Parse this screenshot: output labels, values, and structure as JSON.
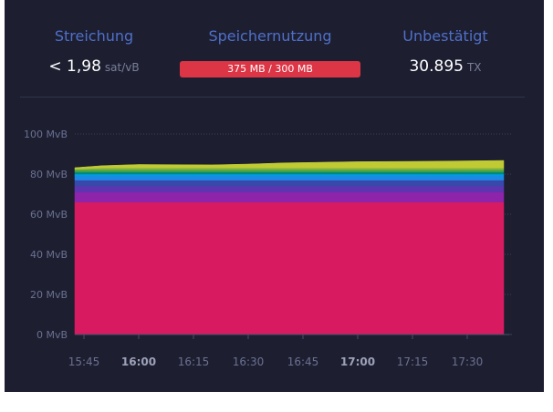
{
  "stats": {
    "fee": {
      "label": "Streichung",
      "value": "< 1,98",
      "unit": "sat/vB"
    },
    "memory": {
      "label": "Speichernutzung",
      "value": "375 MB / 300 MB",
      "usage_fraction": 1.0,
      "color": "#dc3545"
    },
    "unconfirmed": {
      "label": "Unbestätigt",
      "value": "30.895",
      "unit": "TX"
    }
  },
  "chart_data": {
    "type": "area",
    "title": "",
    "xlabel": "",
    "ylabel": "",
    "ylim": [
      0,
      100
    ],
    "y_ticks": [
      "0 MvB",
      "20 MvB",
      "40 MvB",
      "60 MvB",
      "80 MvB",
      "100 MvB"
    ],
    "x_ticks": [
      "15:45",
      "16:00",
      "16:15",
      "16:30",
      "16:45",
      "17:00",
      "17:15",
      "17:30"
    ],
    "x_ticks_bold": [
      "16:00",
      "17:00"
    ],
    "xlim_minutes": [
      15.75,
      17.75
    ],
    "grid": true,
    "stacked": true,
    "x": [
      "15:40",
      "15:50",
      "16:00",
      "16:10",
      "16:20",
      "16:30",
      "16:40",
      "16:50",
      "17:00",
      "17:10",
      "17:20",
      "17:30",
      "17:40"
    ],
    "series": [
      {
        "color": "#d81b60",
        "values": [
          66,
          66,
          66,
          66,
          66,
          66,
          66,
          66,
          66,
          66,
          66,
          66,
          66
        ]
      },
      {
        "color": "#8e24aa",
        "values": [
          5,
          5,
          5,
          5,
          5,
          5,
          5,
          5,
          5,
          5,
          5,
          5,
          5
        ]
      },
      {
        "color": "#5e35b1",
        "values": [
          3,
          3,
          3,
          3,
          3,
          3,
          3,
          3,
          3,
          3,
          3,
          3,
          3
        ]
      },
      {
        "color": "#3949ab",
        "values": [
          3,
          3,
          3,
          3,
          3,
          3,
          3,
          3,
          3,
          3,
          3,
          3,
          3
        ]
      },
      {
        "color": "#1e88e5",
        "values": [
          2,
          2,
          2,
          2,
          2,
          2,
          2,
          2,
          2,
          2,
          2,
          2,
          2
        ]
      },
      {
        "color": "#039be5",
        "values": [
          1,
          1,
          1,
          1,
          1,
          1,
          1,
          1,
          1,
          1,
          1,
          1,
          1
        ]
      },
      {
        "color": "#00897b",
        "values": [
          1,
          1,
          1,
          1,
          1,
          1,
          1,
          1,
          1,
          1,
          1,
          1,
          1
        ]
      },
      {
        "color": "#43a047",
        "values": [
          1,
          1,
          1,
          1,
          1,
          1,
          1,
          1,
          1,
          1,
          1,
          1,
          1
        ]
      },
      {
        "color": "#7cb342",
        "values": [
          0.5,
          1,
          1,
          1,
          1,
          1,
          1,
          1,
          1,
          1,
          1,
          1,
          1
        ]
      },
      {
        "color": "#c0ca33",
        "values": [
          0.7,
          1.2,
          1.8,
          1.7,
          1.6,
          2.0,
          2.6,
          2.9,
          3.2,
          3.3,
          3.4,
          3.6,
          3.8
        ]
      }
    ]
  }
}
